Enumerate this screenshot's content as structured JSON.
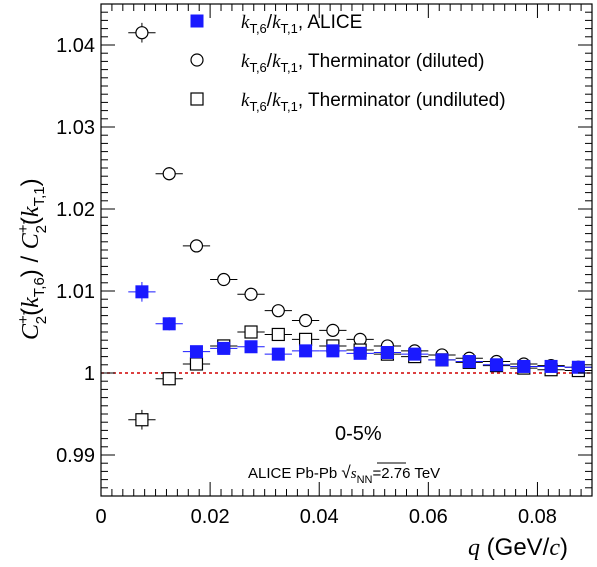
{
  "chart_data": {
    "type": "scatter",
    "xlim": [
      0,
      0.09
    ],
    "ylim": [
      0.985,
      1.045
    ],
    "x_ticks": [
      {
        "v": 0,
        "label": "0"
      },
      {
        "v": 0.02,
        "label": "0.02"
      },
      {
        "v": 0.04,
        "label": "0.04"
      },
      {
        "v": 0.06,
        "label": "0.06"
      },
      {
        "v": 0.08,
        "label": "0.08"
      }
    ],
    "y_ticks": [
      {
        "v": 0.99,
        "label": "0.99"
      },
      {
        "v": 1.0,
        "label": "1"
      },
      {
        "v": 1.01,
        "label": "1.01"
      },
      {
        "v": 1.02,
        "label": "1.02"
      },
      {
        "v": 1.03,
        "label": "1.03"
      },
      {
        "v": 1.04,
        "label": "1.04"
      }
    ],
    "xlabel": {
      "var": "q",
      "unit": "(GeV/c)"
    },
    "ylabel": "C2(kT,6) / C2(kT,1)",
    "reference_line": {
      "y": 1.0,
      "color": "#d00000",
      "style": "dashed"
    },
    "x_error": 0.0025,
    "series": [
      {
        "name": "kT,6/kT,1, ALICE",
        "marker": "filled-square",
        "color": "#1a1aff",
        "x": [
          0.0075,
          0.0125,
          0.0175,
          0.0225,
          0.0275,
          0.0325,
          0.0375,
          0.0425,
          0.0475,
          0.0525,
          0.0575,
          0.0625,
          0.0675,
          0.0725,
          0.0775,
          0.0825,
          0.0875
        ],
        "y": [
          1.0099,
          1.006,
          1.0026,
          1.003,
          1.0032,
          1.0023,
          1.0027,
          1.0027,
          1.0024,
          1.0025,
          1.0023,
          1.0016,
          1.0014,
          1.001,
          1.0008,
          1.0008,
          1.0007
        ],
        "yerr": [
          0.0012,
          0.0008,
          0.0006,
          0.0005,
          0.0005,
          0.0004,
          0.0004,
          0.0004,
          0.0004,
          0.0004,
          0.0004,
          0.0004,
          0.0004,
          0.0004,
          0.0004,
          0.0004,
          0.0004
        ]
      },
      {
        "name": "kT,6/kT,1, Therminator (diluted)",
        "marker": "open-circle",
        "color": "#000000",
        "x": [
          0.0075,
          0.0125,
          0.0175,
          0.0225,
          0.0275,
          0.0325,
          0.0375,
          0.0425,
          0.0475,
          0.0525,
          0.0575,
          0.0625,
          0.0675,
          0.0725,
          0.0775,
          0.0825,
          0.0875
        ],
        "y": [
          1.0415,
          1.0243,
          1.0155,
          1.0114,
          1.0096,
          1.0076,
          1.0064,
          1.0052,
          1.0041,
          1.0033,
          1.0027,
          1.0022,
          1.0018,
          1.0014,
          1.0011,
          1.0009,
          1.0007
        ],
        "yerr": [
          0.0012,
          0.0008,
          0.0005,
          0.0004,
          0.0004,
          0.0003,
          0.0003,
          0.0003,
          0.0003,
          0.0003,
          0.0003,
          0.0003,
          0.0003,
          0.0003,
          0.0003,
          0.0003,
          0.0003
        ]
      },
      {
        "name": "kT,6/kT,1, Therminator (undiluted)",
        "marker": "open-square",
        "color": "#000000",
        "x": [
          0.0075,
          0.0125,
          0.0175,
          0.0225,
          0.0275,
          0.0325,
          0.0375,
          0.0425,
          0.0475,
          0.0525,
          0.0575,
          0.0625,
          0.0675,
          0.0725,
          0.0775,
          0.0825,
          0.0875
        ],
        "y": [
          0.9943,
          0.9993,
          1.0011,
          1.0033,
          1.005,
          1.0047,
          1.0041,
          1.0033,
          1.0028,
          1.0023,
          1.002,
          1.0016,
          1.0013,
          1.0009,
          1.0006,
          1.0004,
          1.0003
        ],
        "yerr": [
          0.0012,
          0.0008,
          0.0006,
          0.0005,
          0.0005,
          0.0004,
          0.0004,
          0.0004,
          0.0004,
          0.0004,
          0.0004,
          0.0004,
          0.0004,
          0.0004,
          0.0004,
          0.0004,
          0.0004
        ]
      }
    ],
    "annotations": {
      "centrality": "0-5%",
      "system_prefix": "ALICE Pb-Pb ",
      "system_energy": "=2.76 TeV"
    }
  }
}
